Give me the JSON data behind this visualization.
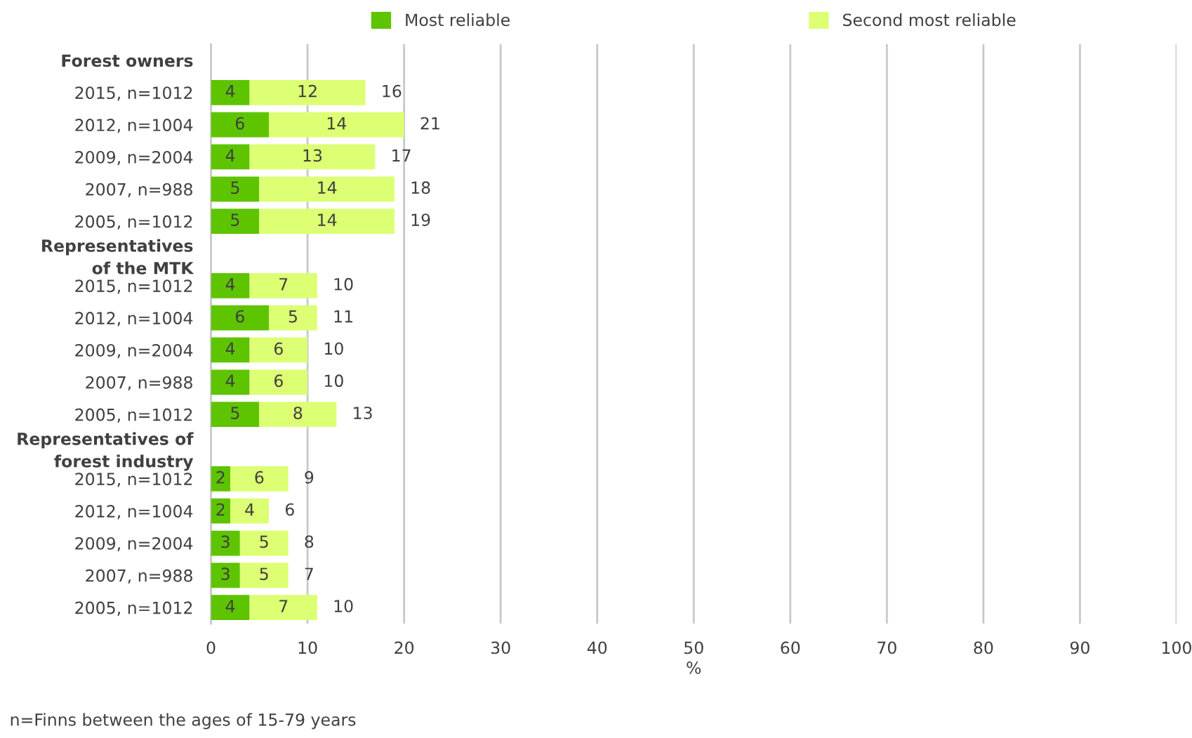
{
  "chart_data": {
    "type": "bar",
    "orientation": "horizontal",
    "stacked": true,
    "xlabel": "%",
    "categories": [
      "Forest owners",
      "2015, n=1012",
      "2012, n=1004",
      "2009, n=2004",
      "2007, n=988",
      "2005, n=1012",
      "Representatives\nof the MTK",
      "2015, n=1012",
      "2012, n=1004",
      "2009, n=2004",
      "2007, n=988",
      "2005, n=1012",
      "Representatives of\nforest industry",
      "2015, n=1012",
      "2012, n=1004",
      "2009, n=2004",
      "2007, n=988",
      "2005, n=1012"
    ],
    "series": [
      {
        "name": "Most reliable",
        "color": "#5ec400",
        "values": [
          null,
          4,
          6,
          4,
          5,
          5,
          null,
          4,
          6,
          4,
          4,
          5,
          null,
          2,
          2,
          3,
          3,
          4
        ]
      },
      {
        "name": "Second most reliable",
        "color": "#ddff73",
        "values": [
          null,
          12,
          14,
          13,
          14,
          14,
          null,
          7,
          5,
          6,
          6,
          8,
          null,
          6,
          4,
          5,
          5,
          7
        ]
      }
    ],
    "totals": [
      null,
      "16",
      "21",
      "17",
      "18",
      "19",
      null,
      "10",
      "11",
      "10",
      "10",
      "13",
      null,
      "9",
      "6",
      "8",
      "7",
      "10"
    ],
    "data_labels": true,
    "xlim": [
      0,
      100
    ],
    "xticks": [
      0,
      10,
      20,
      30,
      40,
      50,
      60,
      70,
      80,
      90,
      100
    ],
    "grid": "x",
    "legend": "top",
    "annotations": [
      "n=Finns between the ages of 15-79 years"
    ]
  }
}
